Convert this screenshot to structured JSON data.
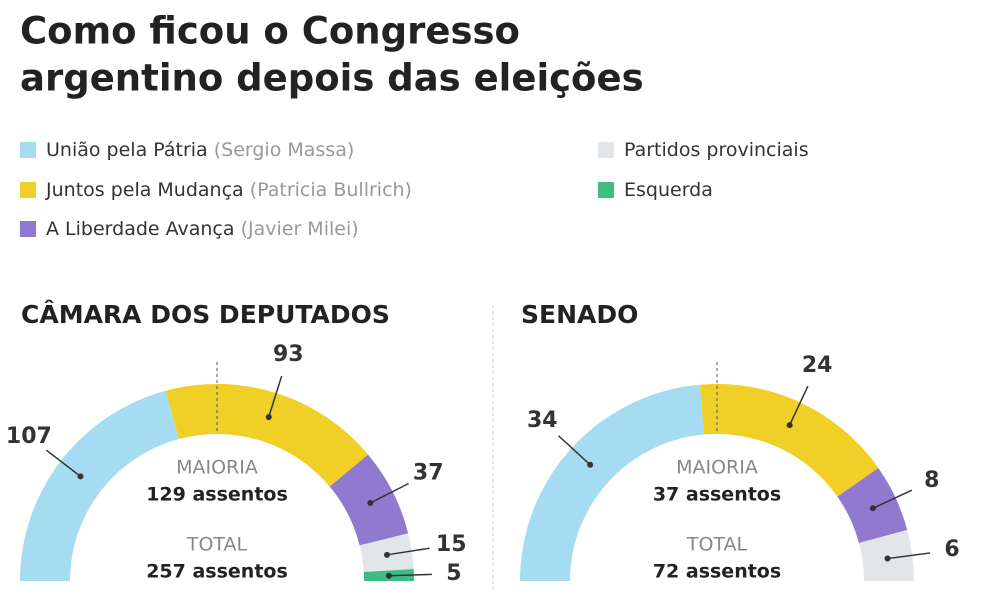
{
  "title": [
    "Como ficou o Congresso",
    "argentino depois das eleições"
  ],
  "legend": [
    {
      "name": "União pela Pátria",
      "candidate": "(Sergio Massa)",
      "color": "#a6dcf2"
    },
    {
      "name": "Juntos pela Mudança",
      "candidate": "(Patricia Bullrich)",
      "color": "#f0cf27"
    },
    {
      "name": "A Liberdade Avança",
      "candidate": "(Javier Milei)",
      "color": "#9179cf"
    },
    {
      "name": "Partidos provinciais",
      "color": "#e3e6e9"
    },
    {
      "name": "Esquerda",
      "color": "#3dbd83"
    }
  ],
  "chart_data": [
    {
      "type": "semi-donut",
      "title": "CÂMARA DOS DEPUTADOS",
      "values": [
        107,
        93,
        37,
        15,
        5
      ],
      "majority_label": "MAIORIA",
      "majority_text": "129 assentos",
      "total_label": "TOTAL",
      "total_text": "257 assentos"
    },
    {
      "type": "semi-donut",
      "title": "SENADO",
      "values": [
        34,
        24,
        8,
        6
      ],
      "majority_label": "MAIORIA",
      "majority_text": "37 assentos",
      "total_label": "TOTAL",
      "total_text": "72 assentos"
    }
  ]
}
